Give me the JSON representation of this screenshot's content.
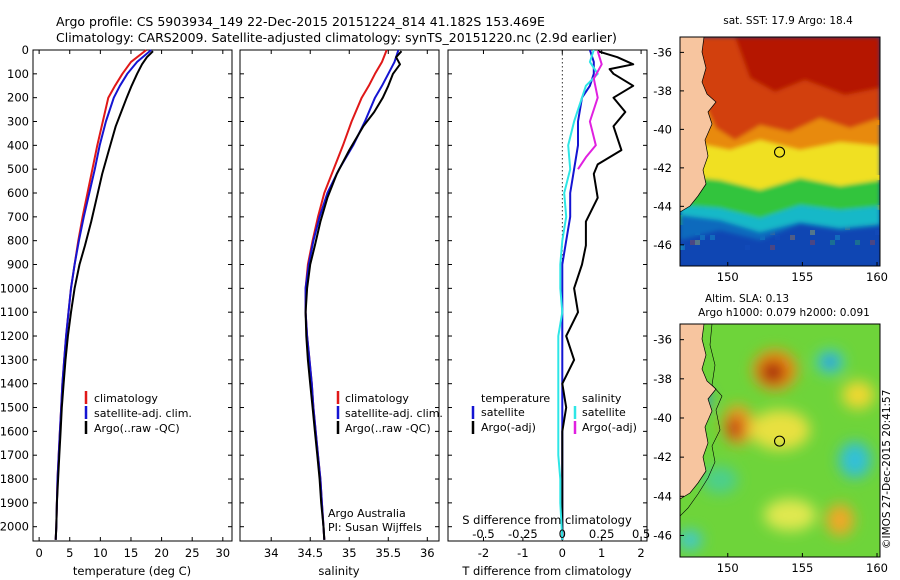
{
  "header": {
    "line1": "Argo profile: CS 5903934_149 22-Dec-2015 20151224_814 41.182S 153.469E",
    "line2": "Climatology: CARS2009. Satellite-adjusted climatology: synTS_20151220.nc (2.9d earlier)"
  },
  "colors": {
    "climatology": "#e01818",
    "satellite": "#1414d2",
    "argo": "#000000",
    "sat_salinity": "#2ee6e6",
    "argo_salinity": "#e020e0",
    "land": "#f7c59f"
  },
  "credit": {
    "org": "Argo Australia",
    "pi": "PI: Susan Wijffels",
    "stamp": "©IMOS 27-Dec-2015 20:41:57"
  },
  "chart_data": [
    {
      "id": "temperature",
      "type": "line",
      "xlabel": "temperature (deg C)",
      "xlim": [
        -1,
        31.5
      ],
      "xticks": [
        0,
        5,
        10,
        15,
        20,
        25,
        30
      ],
      "ylim": [
        2060,
        0
      ],
      "yticks": [
        0,
        100,
        200,
        300,
        400,
        500,
        600,
        700,
        800,
        900,
        1000,
        1100,
        1200,
        1300,
        1400,
        1500,
        1600,
        1700,
        1800,
        1900,
        2000
      ],
      "legend": [
        "climatology",
        "satellite-adj. clim.",
        "Argo(..raw -QC)"
      ],
      "series": [
        {
          "name": "climatology",
          "color": "#e01818",
          "x": [
            17.5,
            15.0,
            13.6,
            12.4,
            11.3,
            10.4,
            9.5,
            8.7,
            7.9,
            7.1,
            6.4,
            5.8,
            5.2,
            4.8,
            4.4,
            4.1,
            3.8,
            3.6,
            3.4,
            3.2,
            3.0,
            2.9,
            2.8,
            2.7
          ],
          "y": [
            0,
            50,
            100,
            150,
            200,
            300,
            400,
            500,
            600,
            700,
            800,
            900,
            1000,
            1100,
            1200,
            1300,
            1400,
            1500,
            1600,
            1700,
            1800,
            1900,
            2000,
            2055
          ]
        },
        {
          "name": "satellite-adj. clim.",
          "color": "#1414d2",
          "x": [
            18.3,
            16.0,
            14.4,
            13.2,
            12.2,
            10.9,
            9.9,
            9.1,
            8.2,
            7.3,
            6.5,
            5.8,
            5.2,
            4.8,
            4.4,
            4.1,
            3.8,
            3.6,
            3.4,
            3.2,
            3.0,
            2.9,
            2.8,
            2.7
          ],
          "y": [
            0,
            50,
            100,
            150,
            200,
            300,
            400,
            500,
            600,
            700,
            800,
            900,
            1000,
            1100,
            1200,
            1300,
            1400,
            1500,
            1600,
            1700,
            1800,
            1900,
            2000,
            2055
          ]
        },
        {
          "name": "Argo",
          "color": "#000000",
          "x": [
            18.6,
            17.6,
            16.8,
            16.0,
            15.1,
            14.3,
            13.4,
            12.5,
            11.4,
            10.3,
            9.4,
            8.5,
            7.5,
            6.6,
            5.8,
            5.2,
            4.7,
            4.3,
            4.0,
            3.7,
            3.5,
            3.3,
            3.1,
            2.9,
            2.8,
            2.7
          ],
          "y": [
            5,
            30,
            60,
            100,
            150,
            200,
            260,
            320,
            420,
            520,
            620,
            720,
            820,
            900,
            1000,
            1100,
            1200,
            1300,
            1400,
            1500,
            1600,
            1700,
            1800,
            1900,
            2000,
            2055
          ]
        }
      ]
    },
    {
      "id": "salinity",
      "type": "line",
      "xlabel": "salinity",
      "xlim": [
        33.6,
        36.15
      ],
      "xticks": [
        34,
        34.5,
        35,
        35.5,
        36
      ],
      "ylim": [
        2060,
        0
      ],
      "legend": [
        "climatology",
        "satellite-adj. clim.",
        "Argo(..raw -QC)"
      ],
      "series": [
        {
          "name": "climatology",
          "color": "#e01818",
          "x": [
            35.48,
            35.42,
            35.33,
            35.25,
            35.16,
            35.03,
            34.92,
            34.8,
            34.68,
            34.6,
            34.53,
            34.47,
            34.44,
            34.44,
            34.46,
            34.49,
            34.52,
            34.54,
            34.57,
            34.6,
            34.63,
            34.65,
            34.67,
            34.68
          ],
          "y": [
            0,
            50,
            100,
            150,
            200,
            300,
            400,
            500,
            600,
            700,
            800,
            900,
            1000,
            1100,
            1200,
            1300,
            1400,
            1500,
            1600,
            1700,
            1800,
            1900,
            2000,
            2055
          ]
        },
        {
          "name": "satellite-adj. clim.",
          "color": "#1414d2",
          "x": [
            35.63,
            35.58,
            35.5,
            35.42,
            35.33,
            35.2,
            35.05,
            34.87,
            34.72,
            34.62,
            34.54,
            34.48,
            34.44,
            34.44,
            34.46,
            34.49,
            34.52,
            34.54,
            34.57,
            34.6,
            34.63,
            34.65,
            34.67,
            34.68
          ],
          "y": [
            0,
            50,
            100,
            150,
            200,
            300,
            400,
            500,
            600,
            700,
            800,
            900,
            1000,
            1100,
            1200,
            1300,
            1400,
            1500,
            1600,
            1700,
            1800,
            1900,
            2000,
            2055
          ]
        },
        {
          "name": "Argo",
          "color": "#000000",
          "x": [
            35.67,
            35.6,
            35.65,
            35.56,
            35.5,
            35.43,
            35.32,
            35.18,
            35.0,
            34.84,
            34.72,
            34.63,
            34.56,
            34.5,
            34.46,
            34.44,
            34.45,
            34.47,
            34.5,
            34.53,
            34.56,
            34.59,
            34.62,
            34.64,
            34.67,
            34.68
          ],
          "y": [
            5,
            30,
            60,
            100,
            150,
            200,
            260,
            320,
            420,
            520,
            620,
            720,
            820,
            900,
            1000,
            1100,
            1200,
            1300,
            1400,
            1500,
            1600,
            1700,
            1800,
            1900,
            2000,
            2055
          ]
        }
      ]
    },
    {
      "id": "difference",
      "type": "line",
      "xlabel": "T difference from climatology",
      "xlabel_top": "S difference from climatology",
      "xlim": [
        -2.9,
        2.15
      ],
      "xticks": [
        -2,
        -1,
        0,
        1,
        2
      ],
      "s_ticks": [
        "-0.5",
        "-0.25",
        "0",
        "0.25",
        "0.5"
      ],
      "s_tick_positions_T": [
        -2.0,
        -1.0,
        0.0,
        1.0,
        2.0
      ],
      "ylim": [
        2060,
        0
      ],
      "legend_temperature_title": "temperature",
      "legend_salinity_title": "salinity",
      "legend_labels": [
        "satellite",
        "Argo(-adj)",
        "satellite",
        "Argo(-adj)"
      ],
      "series": [
        {
          "name": "T satellite",
          "color": "#1414d2",
          "x": [
            0.7,
            0.8,
            0.8,
            0.7,
            0.5,
            0.4,
            0.4,
            0.3,
            0.2,
            0.2,
            0.1,
            0.0,
            0.0,
            0.0,
            0.0,
            0.0,
            0.0,
            0.0,
            0.0,
            0.0,
            0.0,
            0.0,
            0.0,
            0.0
          ],
          "y": [
            0,
            50,
            100,
            150,
            200,
            300,
            400,
            500,
            600,
            700,
            800,
            900,
            1000,
            1100,
            1200,
            1300,
            1400,
            1500,
            1600,
            1700,
            1800,
            1900,
            2000,
            2055
          ]
        },
        {
          "name": "T Argo",
          "color": "#000000",
          "x": [
            0.9,
            1.4,
            1.8,
            1.2,
            1.3,
            1.8,
            1.3,
            1.6,
            1.3,
            1.5,
            0.9,
            0.8,
            0.9,
            0.6,
            0.6,
            0.5,
            0.3,
            0.4,
            0.1,
            0.3,
            0.0,
            0.1,
            0.0,
            0.0,
            0.0,
            0.0,
            0.0
          ],
          "y": [
            5,
            30,
            60,
            80,
            100,
            150,
            200,
            260,
            320,
            420,
            480,
            520,
            620,
            720,
            820,
            900,
            1000,
            1100,
            1200,
            1300,
            1400,
            1500,
            1600,
            1700,
            1800,
            1900,
            2055
          ]
        },
        {
          "name": "S satellite",
          "color": "#2ee6e6",
          "x": [
            0.8,
            0.7,
            0.9,
            0.6,
            0.5,
            0.3,
            0.15,
            0.2,
            0.05,
            0.1,
            0.0,
            -0.05,
            -0.05,
            0.0,
            -0.1,
            -0.1,
            -0.1,
            -0.1,
            -0.1,
            -0.1,
            -0.05,
            -0.05,
            0.0
          ],
          "y": [
            0,
            50,
            100,
            150,
            200,
            300,
            400,
            500,
            600,
            700,
            800,
            900,
            1000,
            1100,
            1200,
            1300,
            1400,
            1500,
            1600,
            1700,
            1800,
            1900,
            2055
          ]
        },
        {
          "name": "S Argo",
          "color": "#e020e0",
          "x": [
            0.9,
            1.0,
            0.8,
            0.9,
            0.7,
            0.85,
            0.6,
            0.4
          ],
          "y": [
            5,
            60,
            120,
            200,
            300,
            400,
            450,
            500
          ]
        }
      ]
    },
    {
      "id": "sst_map",
      "type": "heatmap",
      "title": "sat. SST: 17.9 Argo: 18.4",
      "xticks": [
        150,
        155,
        160
      ],
      "yticks": [
        -36,
        -38,
        -40,
        -42,
        -44,
        -46
      ],
      "xlim": [
        146.8,
        160.2
      ],
      "ylim": [
        -47.1,
        -35.2
      ],
      "marker": {
        "lon": 153.469,
        "lat": -41.182
      }
    },
    {
      "id": "sla_map",
      "type": "heatmap",
      "title_line1": "Altim. SLA: 0.13",
      "title_line2": "Argo h1000: 0.079 h2000: 0.091",
      "xticks": [
        150,
        155,
        160
      ],
      "yticks": [
        -36,
        -38,
        -40,
        -42,
        -44,
        -46
      ],
      "xlim": [
        146.8,
        160.2
      ],
      "ylim": [
        -47.1,
        -35.2
      ],
      "marker": {
        "lon": 153.469,
        "lat": -41.182
      }
    }
  ]
}
